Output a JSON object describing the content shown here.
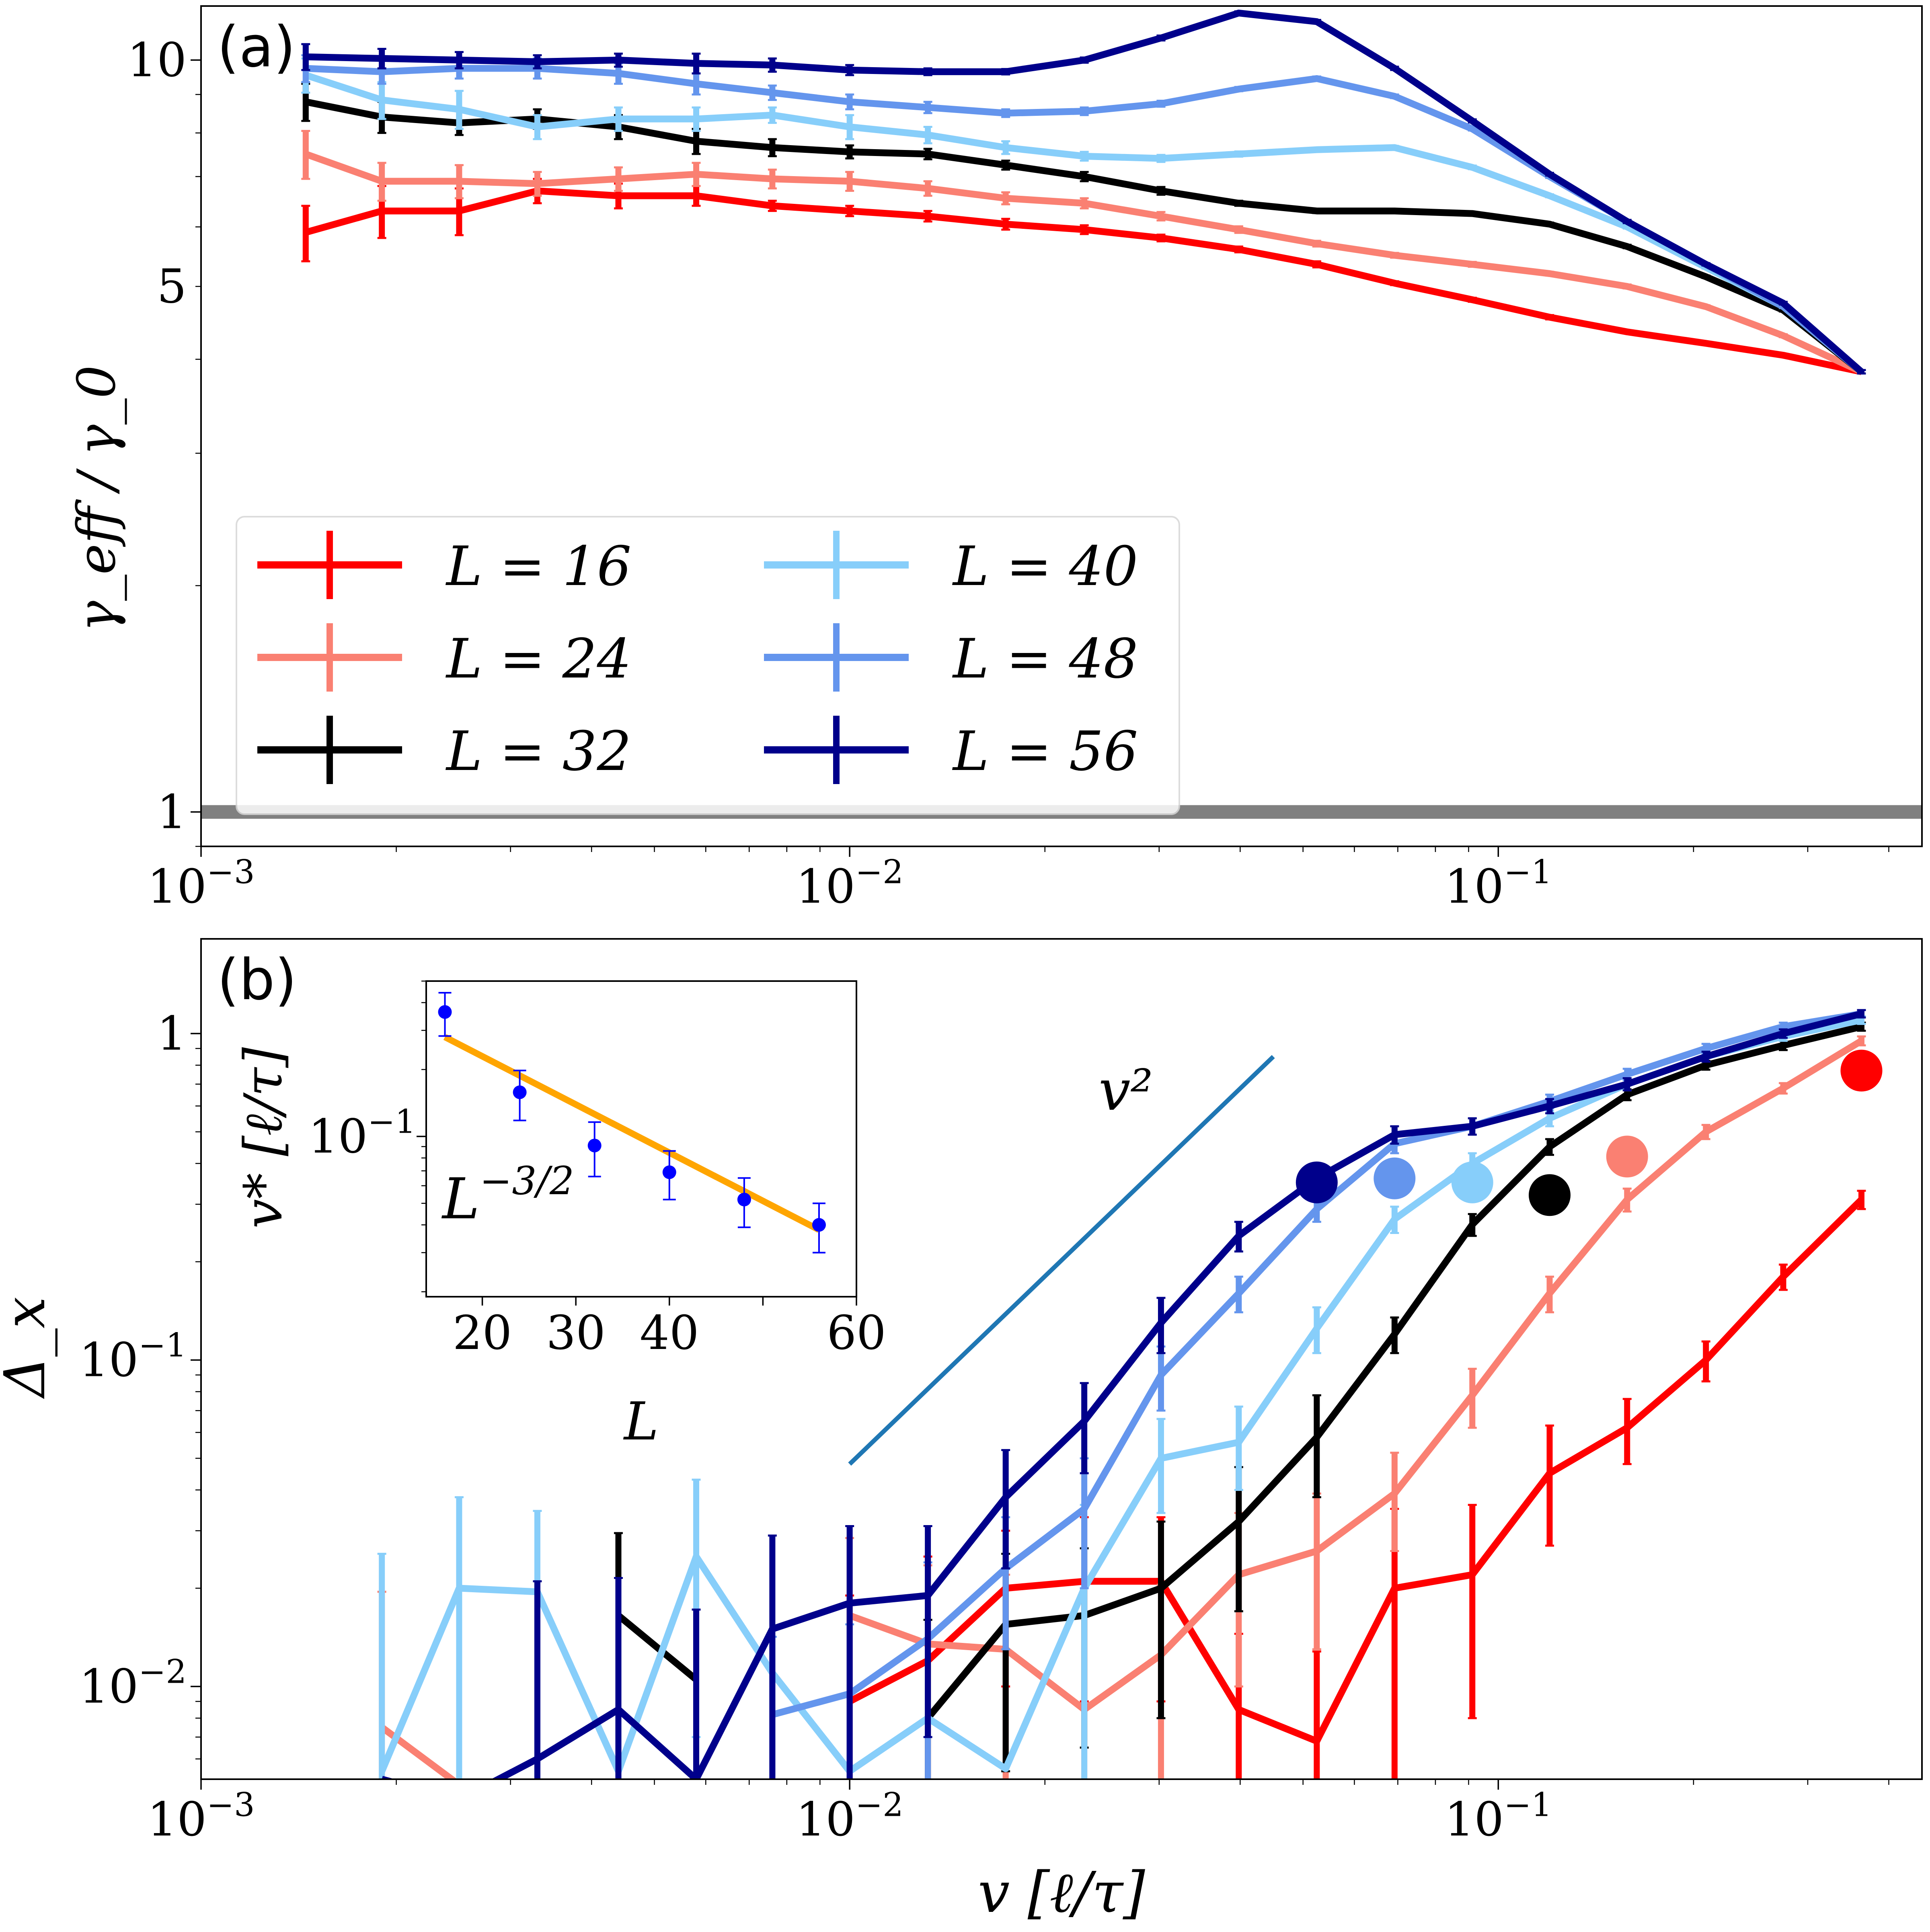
{
  "chart_data": [
    {
      "panel": "(a)",
      "type": "line",
      "xscale": "log",
      "yscale": "log",
      "xlim": [
        0.001,
        0.45
      ],
      "ylim": [
        0.9,
        11.8
      ],
      "ylabel": "γ_eff / γ_0",
      "xlabel": "",
      "xticks": [
        "10^-3",
        "10^-2",
        "10^-1"
      ],
      "yticks": [
        "1",
        "5",
        "10"
      ],
      "reference_line": {
        "y": 1.0,
        "color": "#808080"
      },
      "x": [
        0.0011,
        0.00145,
        0.0019,
        0.0025,
        0.0033,
        0.0044,
        0.0058,
        0.0076,
        0.01,
        0.0132,
        0.0174,
        0.023,
        0.0302,
        0.0398,
        0.0525,
        0.0692,
        0.0912,
        0.12,
        0.158,
        0.209,
        0.275,
        0.363
      ],
      "series": [
        {
          "name": "L = 16",
          "label": "L = 16",
          "color": "#ff0000",
          "values": [
            null,
            5.9,
            6.3,
            6.3,
            6.7,
            6.6,
            6.6,
            6.4,
            6.3,
            6.2,
            6.05,
            5.95,
            5.8,
            5.6,
            5.35,
            5.05,
            4.8,
            4.55,
            4.35,
            4.2,
            4.05,
            3.85
          ],
          "errors": [
            null,
            0.5,
            0.5,
            0.45,
            0.25,
            0.25,
            0.2,
            0.1,
            0.1,
            0.1,
            0.1,
            0.08,
            0.06,
            0.05,
            0.05,
            0.03,
            0.03,
            0.03,
            0.02,
            0.02,
            0.02,
            0.02
          ]
        },
        {
          "name": "L = 24",
          "label": "L = 24",
          "color": "#fa8072",
          "values": [
            null,
            7.5,
            6.9,
            6.9,
            6.85,
            6.95,
            7.05,
            6.95,
            6.9,
            6.75,
            6.55,
            6.45,
            6.2,
            5.95,
            5.7,
            5.5,
            5.35,
            5.2,
            5.0,
            4.7,
            4.3,
            3.85
          ],
          "errors": [
            null,
            0.55,
            0.4,
            0.35,
            0.25,
            0.25,
            0.25,
            0.2,
            0.2,
            0.15,
            0.12,
            0.1,
            0.08,
            0.06,
            0.05,
            0.04,
            0.04,
            0.03,
            0.03,
            0.02,
            0.02,
            0.02
          ]
        },
        {
          "name": "L = 32",
          "label": "L = 32",
          "color": "#000000",
          "values": [
            null,
            8.8,
            8.4,
            8.25,
            8.35,
            8.15,
            7.8,
            7.65,
            7.55,
            7.5,
            7.25,
            7.0,
            6.7,
            6.45,
            6.3,
            6.3,
            6.25,
            6.05,
            5.65,
            5.15,
            4.65,
            3.85
          ],
          "errors": [
            null,
            0.5,
            0.4,
            0.3,
            0.25,
            0.3,
            0.3,
            0.2,
            0.15,
            0.12,
            0.1,
            0.1,
            0.08,
            0.05,
            0.04,
            0.04,
            0.03,
            0.03,
            0.03,
            0.02,
            0.02,
            0.02
          ]
        },
        {
          "name": "L = 40",
          "label": "L = 40",
          "color": "#87cefa",
          "values": [
            null,
            9.55,
            8.85,
            8.6,
            8.15,
            8.35,
            8.35,
            8.45,
            8.15,
            7.95,
            7.65,
            7.45,
            7.4,
            7.5,
            7.6,
            7.65,
            7.2,
            6.6,
            6.0,
            5.3,
            4.7,
            3.85
          ],
          "errors": [
            null,
            0.5,
            0.5,
            0.5,
            0.3,
            0.3,
            0.3,
            0.2,
            0.3,
            0.2,
            0.15,
            0.1,
            0.08,
            0.06,
            0.05,
            0.04,
            0.04,
            0.03,
            0.03,
            0.02,
            0.02,
            0.02
          ]
        },
        {
          "name": "L = 48",
          "label": "L = 48",
          "color": "#6495ed",
          "values": [
            null,
            9.75,
            9.65,
            9.75,
            9.75,
            9.6,
            9.3,
            9.05,
            8.8,
            8.65,
            8.5,
            8.55,
            8.75,
            9.15,
            9.45,
            8.95,
            8.1,
            7.0,
            6.1,
            5.35,
            4.7,
            3.85
          ],
          "errors": [
            null,
            0.4,
            0.35,
            0.3,
            0.3,
            0.3,
            0.3,
            0.2,
            0.2,
            0.15,
            0.1,
            0.1,
            0.08,
            0.06,
            0.06,
            0.05,
            0.04,
            0.03,
            0.03,
            0.02,
            0.02,
            0.02
          ]
        },
        {
          "name": "L = 56",
          "label": "L = 56",
          "color": "#00008b",
          "values": [
            null,
            10.1,
            10.05,
            10.0,
            9.95,
            10.0,
            9.9,
            9.85,
            9.7,
            9.65,
            9.65,
            10.0,
            10.7,
            11.55,
            11.25,
            9.75,
            8.3,
            7.05,
            6.1,
            5.35,
            4.75,
            3.85
          ],
          "errors": [
            null,
            0.4,
            0.3,
            0.25,
            0.2,
            0.2,
            0.3,
            0.2,
            0.15,
            0.1,
            0.08,
            0.08,
            0.08,
            0.06,
            0.06,
            0.05,
            0.04,
            0.03,
            0.03,
            0.02,
            0.02,
            0.02
          ]
        }
      ]
    },
    {
      "panel": "(b)",
      "type": "line",
      "xscale": "log",
      "yscale": "log",
      "xlim": [
        0.001,
        0.45
      ],
      "ylim": [
        0.0052,
        1.95
      ],
      "ylabel": "Δ_x",
      "xlabel": "v [ℓ/τ]",
      "xticks": [
        "10^-3",
        "10^-2",
        "10^-1"
      ],
      "yticks": [
        "10^-2",
        "10^-1",
        "1"
      ],
      "annotation": "v²",
      "reference_line": {
        "label": "v²",
        "x": [
          0.01,
          0.045
        ],
        "y": [
          0.048,
          0.85
        ],
        "color": "#1f77b4"
      },
      "x": [
        0.0011,
        0.00145,
        0.0019,
        0.0025,
        0.0033,
        0.0044,
        0.0058,
        0.0076,
        0.01,
        0.0132,
        0.0174,
        0.023,
        0.0302,
        0.0398,
        0.0525,
        0.0692,
        0.0912,
        0.12,
        0.158,
        0.209,
        0.275,
        0.363
      ],
      "series": [
        {
          "name": "L = 16",
          "color": "#ff0000",
          "marker_x": 0.363,
          "marker_y": 0.77,
          "values": [
            null,
            null,
            null,
            null,
            null,
            null,
            null,
            null,
            0.009,
            0.012,
            0.02,
            0.021,
            0.021,
            0.0085,
            0.0068,
            0.02,
            0.022,
            0.045,
            0.062,
            0.1,
            0.18,
            0.31
          ],
          "errors": [
            null,
            null,
            null,
            null,
            null,
            null,
            null,
            null,
            0.01,
            0.013,
            0.01,
            0.012,
            0.012,
            0.006,
            0.006,
            0.015,
            0.014,
            0.018,
            0.014,
            0.014,
            0.016,
            0.02
          ]
        },
        {
          "name": "L = 24",
          "color": "#fa8072",
          "marker_x": 0.158,
          "marker_y": 0.42,
          "values": [
            null,
            null,
            0.0075,
            0.005,
            null,
            null,
            0.0058,
            null,
            0.0165,
            0.0135,
            0.013,
            0.0085,
            0.0125,
            0.022,
            0.026,
            0.039,
            0.078,
            0.16,
            0.31,
            0.5,
            0.68,
            0.95
          ],
          "errors": [
            null,
            null,
            0.012,
            null,
            null,
            null,
            null,
            null,
            0.012,
            0.01,
            0.009,
            0.008,
            0.008,
            0.012,
            0.013,
            0.013,
            0.016,
            0.02,
            0.025,
            0.025,
            0.025,
            0.03
          ]
        },
        {
          "name": "L = 32",
          "color": "#000000",
          "marker_x": 0.12,
          "marker_y": 0.32,
          "values": [
            null,
            null,
            null,
            0.0052,
            null,
            0.0165,
            0.0105,
            null,
            null,
            0.008,
            0.0155,
            0.0165,
            0.02,
            0.032,
            0.058,
            0.12,
            0.26,
            0.45,
            0.65,
            0.8,
            0.92,
            1.05
          ],
          "errors": [
            null,
            null,
            null,
            null,
            null,
            0.013,
            null,
            null,
            null,
            0.008,
            0.01,
            0.01,
            0.012,
            0.015,
            0.02,
            0.015,
            0.02,
            0.025,
            0.025,
            0.025,
            0.03,
            0.03
          ]
        },
        {
          "name": "L = 40",
          "color": "#87cefa",
          "marker_x": 0.0912,
          "marker_y": 0.35,
          "values": [
            null,
            null,
            0.0055,
            0.02,
            0.0195,
            0.0055,
            0.025,
            0.011,
            0.0055,
            0.008,
            0.0056,
            0.02,
            0.05,
            0.056,
            0.125,
            0.27,
            0.4,
            0.55,
            0.7,
            0.85,
            0.98,
            1.1
          ],
          "errors": [
            null,
            null,
            0.02,
            0.018,
            0.015,
            null,
            0.018,
            null,
            null,
            null,
            null,
            0.016,
            0.016,
            0.016,
            0.02,
            0.025,
            0.03,
            0.03,
            0.03,
            0.03,
            0.03,
            0.03
          ]
        },
        {
          "name": "L = 48",
          "color": "#6495ed",
          "marker_x": 0.0692,
          "marker_y": 0.36,
          "values": [
            null,
            null,
            null,
            null,
            null,
            null,
            null,
            0.0082,
            0.0095,
            0.014,
            0.023,
            0.035,
            0.09,
            0.16,
            0.29,
            0.46,
            0.52,
            0.62,
            0.75,
            0.9,
            1.05,
            1.15
          ],
          "errors": [
            null,
            null,
            null,
            null,
            null,
            null,
            null,
            0.006,
            0.006,
            0.01,
            0.01,
            0.015,
            0.02,
            0.02,
            0.025,
            0.03,
            0.03,
            0.03,
            0.03,
            0.03,
            0.03,
            0.03
          ]
        },
        {
          "name": "L = 56",
          "color": "#00008b",
          "marker_x": 0.0525,
          "marker_y": 0.35,
          "values": [
            null,
            null,
            0.0052,
            0.0045,
            0.006,
            0.0085,
            0.0052,
            0.015,
            0.018,
            0.019,
            0.038,
            0.065,
            0.13,
            0.24,
            0.36,
            0.49,
            0.52,
            0.6,
            0.7,
            0.85,
            1.0,
            1.15
          ],
          "errors": [
            null,
            null,
            null,
            null,
            0.015,
            0.013,
            0.012,
            0.014,
            0.013,
            0.012,
            0.015,
            0.02,
            0.025,
            0.025,
            0.03,
            0.03,
            0.03,
            0.03,
            0.03,
            0.03,
            0.03,
            0.03
          ]
        }
      ]
    },
    {
      "panel": "inset",
      "type": "scatter",
      "xscale": "linear",
      "yscale": "log",
      "xlim": [
        14,
        60
      ],
      "ylim": [
        0.019,
        0.5
      ],
      "xlabel": "L",
      "ylabel": "v* [ℓ/τ]",
      "xticks": [
        "20",
        "30",
        "40",
        "60"
      ],
      "yticks": [
        "10^-1"
      ],
      "point_color": "#0000ff",
      "fit_color": "#ffa500",
      "fit_label": "L^-3/2",
      "points": [
        {
          "L": 16,
          "v": 0.363,
          "err": 0.08
        },
        {
          "L": 24,
          "v": 0.158,
          "err": 0.04
        },
        {
          "L": 32,
          "v": 0.091,
          "err": 0.025
        },
        {
          "L": 40,
          "v": 0.069,
          "err": 0.017
        },
        {
          "L": 48,
          "v": 0.052,
          "err": 0.013
        },
        {
          "L": 56,
          "v": 0.04,
          "err": 0.01
        }
      ],
      "fit": {
        "L": [
          16,
          56
        ],
        "v": [
          0.28,
          0.038
        ]
      }
    }
  ]
}
